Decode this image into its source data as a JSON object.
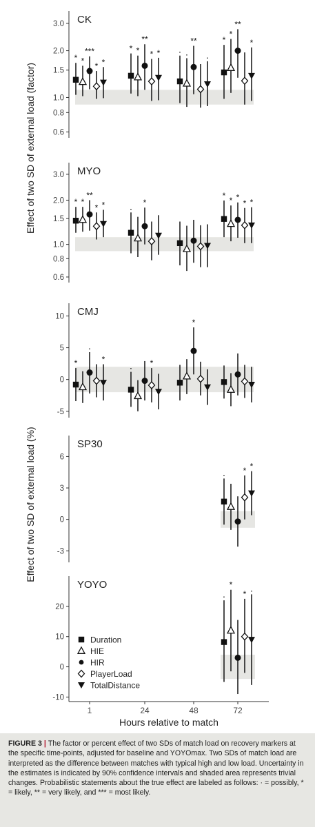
{
  "figure": {
    "ylabel_top": "Effect of two SD of external load (factor)",
    "ylabel_bottom": "Effect of two SD of external load (%)",
    "xlabel": "Hours relative to match",
    "x_tick_labels": [
      "1",
      "24",
      "48",
      "72"
    ]
  },
  "legend": [
    {
      "name": "Duration",
      "marker": "square"
    },
    {
      "name": "HIE",
      "marker": "open-triangle-up"
    },
    {
      "name": "HIR",
      "marker": "circle"
    },
    {
      "name": "PlayerLoad",
      "marker": "open-diamond"
    },
    {
      "name": "TotalDistance",
      "marker": "triangle-down"
    }
  ],
  "caption": {
    "label": "FIGURE 3",
    "separator": "|",
    "text": "The factor or percent effect of two SDs of match load on recovery markers at the specific time-points, adjusted for baseline and YOYOmax. Two SDs of match load are interpreted as the difference between matches with typical high and low load. Uncertainty in the estimates is indicated by 90% confidence intervals and shaded area represents trivial changes. Probabilistic statements about the true effect are labeled as follows: · = possibly, * = likely, ** = very likely, and *** = most likely."
  },
  "colors": {
    "marker": "#111111",
    "trivial_band": "#e6e6e3",
    "caption_bg": "#e7e7e3",
    "caption_separator": "#b01028"
  },
  "chart_data": [
    {
      "type": "scatter",
      "title": "CK",
      "y_scale": "log",
      "yticks": [
        0.6,
        0.8,
        1.0,
        1.5,
        2.0,
        3.0
      ],
      "ytick_labels": [
        "0.6",
        "0.8",
        "1.0",
        "1.5",
        "2.0",
        "3.0"
      ],
      "ylim": [
        0.55,
        3.6
      ],
      "trivial_band": [
        0.9,
        1.12
      ],
      "x": [
        1,
        24,
        48,
        72
      ],
      "series": [
        {
          "name": "Duration",
          "values": [
            1.3,
            1.38,
            1.27,
            1.45
          ],
          "lower": [
            1.04,
            1.06,
            0.92,
            0.98
          ],
          "upper": [
            1.67,
            1.92,
            1.86,
            2.18
          ],
          "labels": [
            "*",
            "*",
            "·",
            "*"
          ]
        },
        {
          "name": "HIE",
          "values": [
            1.26,
            1.35,
            1.23,
            1.55
          ],
          "lower": [
            1.02,
            1.02,
            0.87,
            1.07
          ],
          "upper": [
            1.6,
            1.86,
            1.79,
            2.38
          ],
          "labels": [
            "*",
            "*",
            "·",
            "*"
          ]
        },
        {
          "name": "HIR",
          "values": [
            1.48,
            1.6,
            1.57,
            2.0
          ],
          "lower": [
            1.13,
            1.12,
            1.05,
            1.34
          ],
          "upper": [
            1.84,
            2.2,
            2.15,
            2.75
          ],
          "labels": [
            "***",
            "**",
            "**",
            "**"
          ]
        },
        {
          "name": "PlayerLoad",
          "values": [
            1.18,
            1.27,
            1.13,
            1.28
          ],
          "lower": [
            0.98,
            0.95,
            0.86,
            0.9
          ],
          "upper": [
            1.48,
            1.77,
            1.64,
            1.95
          ],
          "labels": [
            "*",
            "*",
            "",
            ""
          ]
        },
        {
          "name": "TotalDistance",
          "values": [
            1.25,
            1.34,
            1.22,
            1.38
          ],
          "lower": [
            0.99,
            0.96,
            0.88,
            0.95
          ],
          "upper": [
            1.57,
            1.8,
            1.71,
            2.1
          ],
          "labels": [
            "*",
            "*",
            "·",
            "*"
          ]
        }
      ]
    },
    {
      "type": "scatter",
      "title": "MYO",
      "y_scale": "log",
      "yticks": [
        0.6,
        0.8,
        1.0,
        1.5,
        2.0,
        3.0
      ],
      "ytick_labels": [
        "0.6",
        "0.8",
        "1.0",
        "1.5",
        "2.0",
        "3.0"
      ],
      "ylim": [
        0.55,
        3.6
      ],
      "trivial_band": [
        0.9,
        1.12
      ],
      "x": [
        1,
        24,
        48,
        72
      ],
      "series": [
        {
          "name": "Duration",
          "values": [
            1.45,
            1.2,
            1.02,
            1.49
          ],
          "lower": [
            1.2,
            0.87,
            0.72,
            1.12
          ],
          "upper": [
            1.8,
            1.65,
            1.43,
            1.99
          ],
          "labels": [
            "*",
            "·",
            "",
            "*"
          ]
        },
        {
          "name": "HIE",
          "values": [
            1.47,
            1.1,
            0.93,
            1.38
          ],
          "lower": [
            1.22,
            0.82,
            0.66,
            1.05
          ],
          "upper": [
            1.8,
            1.54,
            1.34,
            1.84
          ],
          "labels": [
            "*",
            "",
            "",
            "*"
          ]
        },
        {
          "name": "HIR",
          "values": [
            1.6,
            1.33,
            1.06,
            1.47
          ],
          "lower": [
            1.24,
            1.0,
            0.75,
            1.11
          ],
          "upper": [
            2.0,
            1.78,
            1.47,
            1.93
          ],
          "labels": [
            "**",
            "*",
            "",
            "*"
          ]
        },
        {
          "name": "PlayerLoad",
          "values": [
            1.33,
            1.05,
            0.97,
            1.35
          ],
          "lower": [
            1.08,
            0.78,
            0.7,
            1.02
          ],
          "upper": [
            1.65,
            1.43,
            1.35,
            1.77
          ],
          "labels": [
            "*",
            "",
            "",
            "*"
          ]
        },
        {
          "name": "TotalDistance",
          "values": [
            1.38,
            1.15,
            0.98,
            1.35
          ],
          "lower": [
            1.12,
            0.85,
            0.7,
            1.02
          ],
          "upper": [
            1.72,
            1.58,
            1.37,
            1.79
          ],
          "labels": [
            "*",
            "",
            "",
            "*"
          ]
        }
      ]
    },
    {
      "type": "scatter",
      "title": "CMJ",
      "y_scale": "linear",
      "yticks": [
        -5,
        0,
        5,
        10
      ],
      "ytick_labels": [
        "-5",
        "0",
        "5",
        "10"
      ],
      "ylim": [
        -6,
        12
      ],
      "trivial_band": [
        -2,
        2
      ],
      "x": [
        1,
        24,
        48,
        72
      ],
      "series": [
        {
          "name": "Duration",
          "values": [
            -0.8,
            -1.6,
            -0.5,
            -0.4
          ],
          "lower": [
            -3.4,
            -4.3,
            -3.3,
            -3.0
          ],
          "upper": [
            1.8,
            1.2,
            2.3,
            2.2
          ],
          "labels": [
            "*",
            "·",
            "",
            ""
          ]
        },
        {
          "name": "HIE",
          "values": [
            -1.2,
            -2.6,
            0.5,
            -1.6
          ],
          "lower": [
            -3.7,
            -5.0,
            -2.3,
            -4.2
          ],
          "upper": [
            1.3,
            -0.1,
            3.2,
            1.0
          ],
          "labels": [
            "",
            "",
            "",
            ""
          ]
        },
        {
          "name": "HIR",
          "values": [
            1.1,
            -0.2,
            4.5,
            0.8
          ],
          "lower": [
            -2.2,
            -3.3,
            0.8,
            -2.5
          ],
          "upper": [
            4.3,
            2.9,
            8.2,
            4.1
          ],
          "labels": [
            "·",
            "",
            "*",
            ""
          ]
        },
        {
          "name": "PlayerLoad",
          "values": [
            -0.2,
            -0.9,
            0.1,
            -0.3
          ],
          "lower": [
            -2.8,
            -3.6,
            -2.5,
            -2.9
          ],
          "upper": [
            2.4,
            1.8,
            2.8,
            2.3
          ],
          "labels": [
            "",
            "*",
            "",
            ""
          ]
        },
        {
          "name": "TotalDistance",
          "values": [
            -0.5,
            -1.9,
            -1.2,
            -0.8
          ],
          "lower": [
            -3.3,
            -4.7,
            -4.0,
            -3.6
          ],
          "upper": [
            2.4,
            0.9,
            1.6,
            2.0
          ],
          "labels": [
            "*",
            "",
            "",
            ""
          ]
        }
      ]
    },
    {
      "type": "scatter",
      "title": "SP30",
      "y_scale": "linear",
      "yticks": [
        -3,
        0,
        3,
        6
      ],
      "ytick_labels": [
        "-3",
        "0",
        "3",
        "6"
      ],
      "ylim": [
        -4.1,
        8
      ],
      "trivial_band_x_range": [
        72,
        72
      ],
      "trivial_band": [
        -0.8,
        0.8
      ],
      "x": [
        72
      ],
      "series": [
        {
          "name": "Duration",
          "values": [
            1.7
          ],
          "lower": [
            -0.5
          ],
          "upper": [
            3.9
          ],
          "labels": [
            "·"
          ]
        },
        {
          "name": "HIE",
          "values": [
            1.2
          ],
          "lower": [
            -1.0
          ],
          "upper": [
            3.4
          ],
          "labels": [
            ""
          ]
        },
        {
          "name": "HIR",
          "values": [
            -0.2
          ],
          "lower": [
            -2.6
          ],
          "upper": [
            2.2
          ],
          "labels": [
            ""
          ]
        },
        {
          "name": "PlayerLoad",
          "values": [
            2.1
          ],
          "lower": [
            0.0
          ],
          "upper": [
            4.2
          ],
          "labels": [
            "*"
          ]
        },
        {
          "name": "TotalDistance",
          "values": [
            2.5
          ],
          "lower": [
            0.4
          ],
          "upper": [
            4.6
          ],
          "labels": [
            "*"
          ]
        }
      ]
    },
    {
      "type": "scatter",
      "title": "YOYO",
      "y_scale": "linear",
      "yticks": [
        -10,
        0,
        10,
        20
      ],
      "ytick_labels": [
        "-10",
        "0",
        "10",
        "20"
      ],
      "ylim": [
        -11.5,
        30
      ],
      "trivial_band_x_range": [
        72,
        72
      ],
      "trivial_band": [
        -4,
        4
      ],
      "x": [
        72
      ],
      "series": [
        {
          "name": "Duration",
          "values": [
            8.2
          ],
          "lower": [
            -5.0
          ],
          "upper": [
            22.0
          ],
          "labels": [
            "·"
          ]
        },
        {
          "name": "HIE",
          "values": [
            12.0
          ],
          "lower": [
            -1.5
          ],
          "upper": [
            25.5
          ],
          "labels": [
            "*"
          ]
        },
        {
          "name": "HIR",
          "values": [
            3.0
          ],
          "lower": [
            -9.0
          ],
          "upper": [
            15.5
          ],
          "labels": [
            ""
          ]
        },
        {
          "name": "PlayerLoad",
          "values": [
            10.0
          ],
          "lower": [
            -2.0
          ],
          "upper": [
            22.5
          ],
          "labels": [
            "*"
          ]
        },
        {
          "name": "TotalDistance",
          "values": [
            9.0
          ],
          "lower": [
            -6.0
          ],
          "upper": [
            24.0
          ],
          "labels": [
            "·"
          ]
        }
      ]
    }
  ]
}
